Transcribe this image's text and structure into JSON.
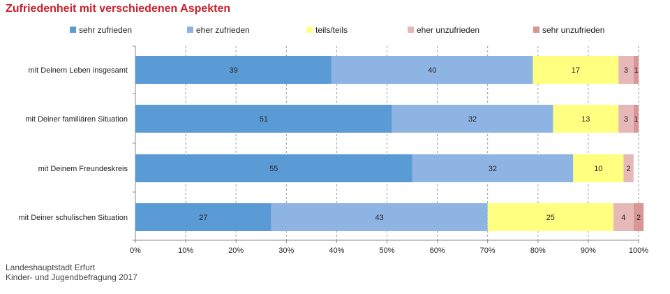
{
  "title": "Zufriedenheit mit verschiedenen Aspekten",
  "source": {
    "line1": "Landeshauptstadt Erfurt",
    "line2": "Kinder- und Jugendbefragung 2017"
  },
  "chart_data": {
    "type": "bar",
    "orientation": "horizontal",
    "stacked": true,
    "categories": [
      "mit Deinem Leben insgesamt",
      "mit Deiner familiären Situation",
      "mit Deinem Freundeskreis",
      "mit Deiner schulischen Situation"
    ],
    "series": [
      {
        "name": "sehr zufrieden",
        "color": "#5b9bd5",
        "values": [
          39,
          51,
          55,
          27
        ]
      },
      {
        "name": "eher zufrieden",
        "color": "#8eb4e3",
        "values": [
          40,
          32,
          32,
          43
        ]
      },
      {
        "name": "teils/teils",
        "color": "#ffff80",
        "values": [
          17,
          13,
          10,
          25
        ]
      },
      {
        "name": "eher unzufrieden",
        "color": "#e6b9b8",
        "values": [
          3,
          3,
          2,
          4
        ]
      },
      {
        "name": "sehr unzufrieden",
        "color": "#d99694",
        "values": [
          1,
          1,
          0,
          2
        ]
      }
    ],
    "xlim": [
      0,
      100
    ],
    "xticks": [
      "0%",
      "10%",
      "20%",
      "30%",
      "40%",
      "50%",
      "60%",
      "70%",
      "80%",
      "90%",
      "100%"
    ],
    "grid": true,
    "legend_position": "top"
  }
}
